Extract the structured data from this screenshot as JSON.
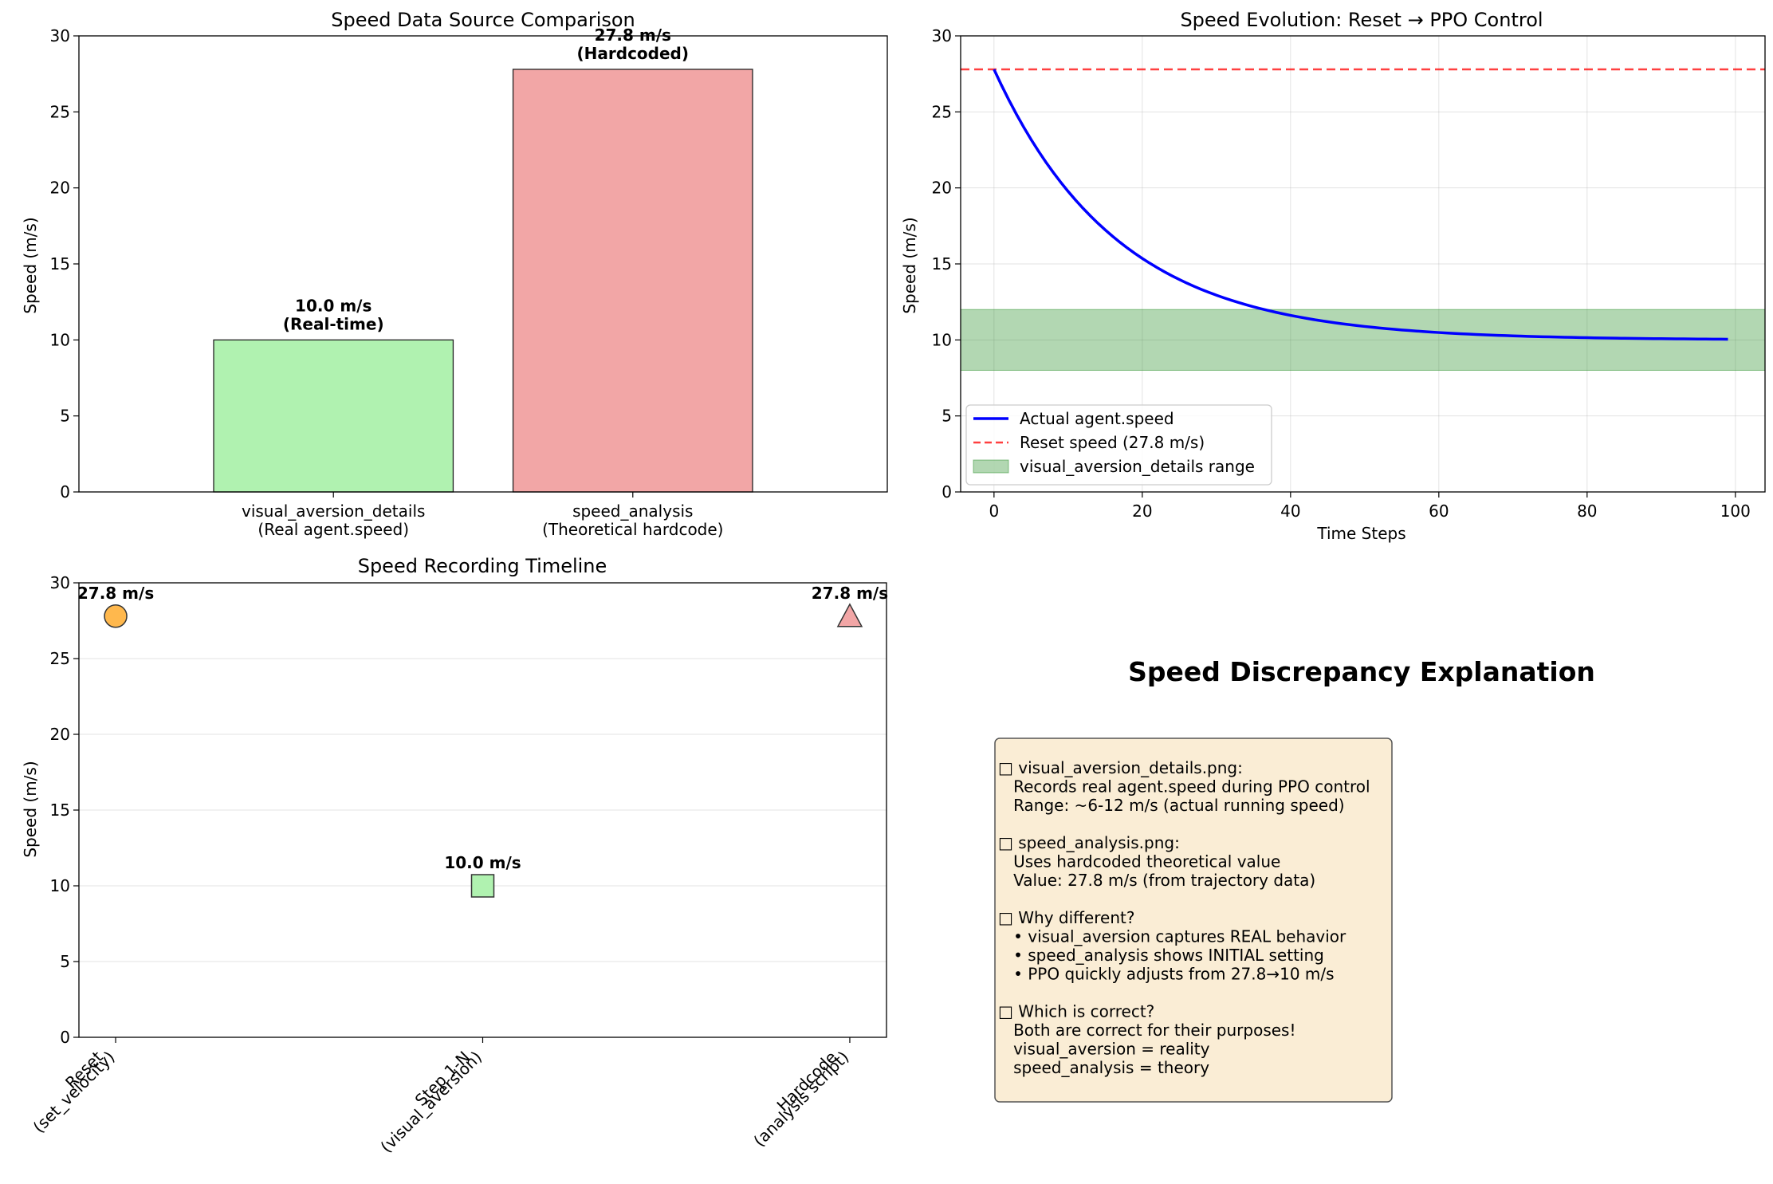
{
  "chart_data": [
    {
      "type": "bar",
      "title": "Speed Data Source Comparison",
      "xlabel": "",
      "ylabel": "Speed (m/s)",
      "ylim": [
        0,
        30
      ],
      "yticks": [
        "0",
        "5",
        "10",
        "15",
        "20",
        "25",
        "30"
      ],
      "categories": [
        [
          "visual_aversion_details",
          "(Real agent.speed)"
        ],
        [
          "speed_analysis",
          "(Theoretical hardcode)"
        ]
      ],
      "values": [
        10.0,
        27.8
      ],
      "bar_labels": [
        [
          "10.0 m/s",
          "(Real-time)"
        ],
        [
          "27.8 m/s",
          "(Hardcoded)"
        ]
      ],
      "colors": [
        "#b0f2b0",
        "#f2a6a6"
      ],
      "grid": false
    },
    {
      "type": "line",
      "title": "Speed Evolution: Reset → PPO Control",
      "xlabel": "Time Steps",
      "ylabel": "Speed (m/s)",
      "xlim": [
        -4.5,
        104
      ],
      "ylim": [
        0,
        30
      ],
      "xticks": [
        "0",
        "20",
        "40",
        "60",
        "80",
        "100"
      ],
      "yticks": [
        "0",
        "5",
        "10",
        "15",
        "20",
        "25",
        "30"
      ],
      "grid": true,
      "legend_position": "lower-left",
      "series": [
        {
          "name": "Actual agent.speed",
          "color": "#0000ff",
          "x_start": 0,
          "x_end": 99,
          "x_step": 1,
          "y_initial": 27.8,
          "y_final": 10.0,
          "decay_rate": 0.06
        }
      ],
      "hline": {
        "name": "Reset speed (27.8 m/s)",
        "y": 27.8,
        "color": "#ff0000"
      },
      "band": {
        "name": "visual_aversion_details range",
        "y_min": 8,
        "y_max": 12,
        "color": "#228b22"
      }
    },
    {
      "type": "scatter",
      "title": "Speed Recording Timeline",
      "xlabel": "",
      "ylabel": "Speed (m/s)",
      "ylim": [
        0,
        30
      ],
      "yticks": [
        "0",
        "5",
        "10",
        "15",
        "20",
        "25",
        "30"
      ],
      "grid": true,
      "points": [
        {
          "category": [
            "Reset",
            "(set_velocity)"
          ],
          "value": 27.8,
          "label": "27.8 m/s",
          "marker": "circle",
          "color": "#ffb84d"
        },
        {
          "category": [
            "Step 1-N",
            "(visual_aversion)"
          ],
          "value": 10.0,
          "label": "10.0 m/s",
          "marker": "square",
          "color": "#b0f2b0"
        },
        {
          "category": [
            "Hardcode",
            "(analysis script)"
          ],
          "value": 27.8,
          "label": "27.8 m/s",
          "marker": "triangle",
          "color": "#f2a6a6"
        }
      ]
    }
  ],
  "explanation": {
    "title": "Speed Discrepancy Explanation",
    "lines": [
      "□ visual_aversion_details.png:",
      "   Records real agent.speed during PPO control",
      "   Range: ~6-12 m/s (actual running speed)",
      "",
      "□ speed_analysis.png:",
      "   Uses hardcoded theoretical value",
      "   Value: 27.8 m/s (from trajectory data)",
      "",
      "□ Why different?",
      "   • visual_aversion captures REAL behavior",
      "   • speed_analysis shows INITIAL setting",
      "   • PPO quickly adjusts from 27.8→10 m/s",
      "",
      "□ Which is correct?",
      "   Both are correct for their purposes!",
      "   visual_aversion = reality",
      "   speed_analysis = theory"
    ],
    "box_color": "#f5deb3"
  }
}
